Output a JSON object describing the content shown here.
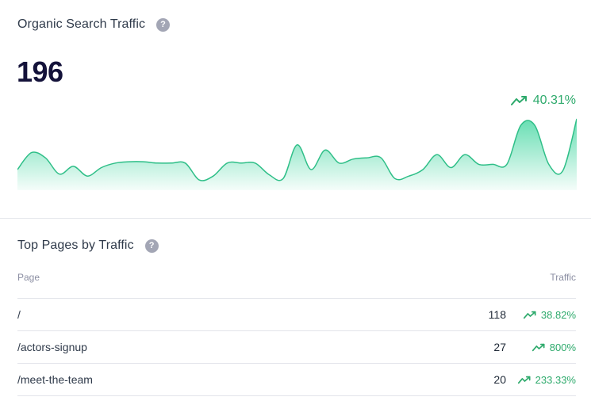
{
  "organic": {
    "title": "Organic Search Traffic",
    "help_icon": "question-circle-icon",
    "value": "196",
    "change": "40.31%",
    "trend_icon": "trending-up-icon"
  },
  "chart_data": {
    "type": "area",
    "values": [
      0.22,
      0.48,
      0.4,
      0.15,
      0.27,
      0.12,
      0.25,
      0.32,
      0.34,
      0.34,
      0.32,
      0.32,
      0.32,
      0.06,
      0.12,
      0.32,
      0.32,
      0.32,
      0.14,
      0.08,
      0.6,
      0.22,
      0.52,
      0.32,
      0.38,
      0.4,
      0.4,
      0.08,
      0.12,
      0.22,
      0.45,
      0.25,
      0.45,
      0.3,
      0.3,
      0.3,
      0.9,
      0.9,
      0.3,
      0.2,
      1.0
    ],
    "fill_color": "#34d399",
    "grid": false,
    "axes": false
  },
  "top_pages": {
    "title": "Top Pages by Traffic",
    "help_icon": "question-circle-icon",
    "columns": {
      "page": "Page",
      "traffic": "Traffic"
    },
    "rows": [
      {
        "page": "/",
        "traffic": "118",
        "change": "38.82%"
      },
      {
        "page": "/actors-signup",
        "traffic": "27",
        "change": "800%"
      },
      {
        "page": "/meet-the-team",
        "traffic": "20",
        "change": "233.33%"
      }
    ]
  },
  "colors": {
    "positive": "#2eaa6c",
    "accent_fill": "#34d399",
    "heading": "#14123a"
  }
}
